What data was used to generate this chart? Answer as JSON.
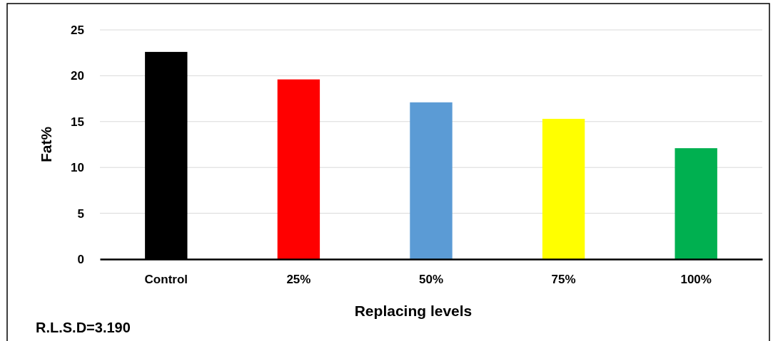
{
  "chart_data": {
    "type": "bar",
    "xlabel": "Replacing levels",
    "ylabel": "Fat%",
    "categories": [
      "Control",
      "25%",
      "50%",
      "75%",
      "100%"
    ],
    "values": [
      22.6,
      19.6,
      17.1,
      15.3,
      12.1
    ],
    "colors": [
      "#000000",
      "#ff0000",
      "#5b9bd5",
      "#ffff00",
      "#00b050"
    ],
    "ylim": [
      0,
      25
    ],
    "yticks": [
      0,
      5,
      10,
      15,
      20,
      25
    ],
    "grid": "y",
    "annotations": [
      "R.L.S.D=3.190"
    ]
  }
}
